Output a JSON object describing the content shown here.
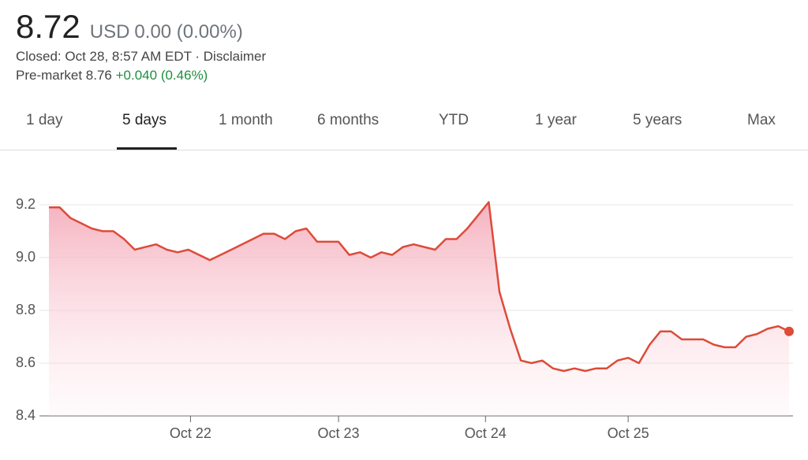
{
  "header": {
    "price": "8.72",
    "currency": "USD",
    "change": "0.00 (0.00%)",
    "closed": "Closed: Oct 28, 8:57 AM EDT · Disclaimer",
    "premarket_label": "Pre-market 8.76",
    "premarket_change": "+0.040 (0.46%)"
  },
  "tabs": {
    "items": [
      "1 day",
      "5 days",
      "1 month",
      "6 months",
      "YTD",
      "1 year",
      "5 years",
      "Max"
    ],
    "selected": 1
  },
  "chart_data": {
    "type": "line",
    "color": "#dd4b39",
    "grid": true,
    "values": [
      9.19,
      9.19,
      9.15,
      9.13,
      9.11,
      9.1,
      9.1,
      9.07,
      9.03,
      9.04,
      9.05,
      9.03,
      9.02,
      9.03,
      9.01,
      8.99,
      9.01,
      9.03,
      9.05,
      9.07,
      9.09,
      9.09,
      9.07,
      9.1,
      9.11,
      9.06,
      9.06,
      9.06,
      9.01,
      9.02,
      9.0,
      9.02,
      9.01,
      9.04,
      9.05,
      9.04,
      9.03,
      9.07,
      9.07,
      9.11,
      9.16,
      9.21,
      8.87,
      8.73,
      8.61,
      8.6,
      8.61,
      8.58,
      8.57,
      8.58,
      8.57,
      8.58,
      8.58,
      8.61,
      8.62,
      8.6,
      8.67,
      8.72,
      8.72,
      8.69,
      8.69,
      8.69,
      8.67,
      8.66,
      8.66,
      8.7,
      8.71,
      8.73,
      8.74,
      8.72
    ],
    "xlim": [
      0,
      69
    ],
    "xticks": [
      {
        "value": 13.2,
        "label": "Oct 22"
      },
      {
        "value": 27,
        "label": "Oct 23"
      },
      {
        "value": 40.7,
        "label": "Oct 24"
      },
      {
        "value": 54,
        "label": "Oct 25"
      }
    ],
    "ylim": [
      8.4,
      9.2
    ],
    "yticks": [
      9.2,
      {
        "value": 9,
        "label": "9.0"
      },
      8.8,
      8.6,
      8.4
    ]
  }
}
